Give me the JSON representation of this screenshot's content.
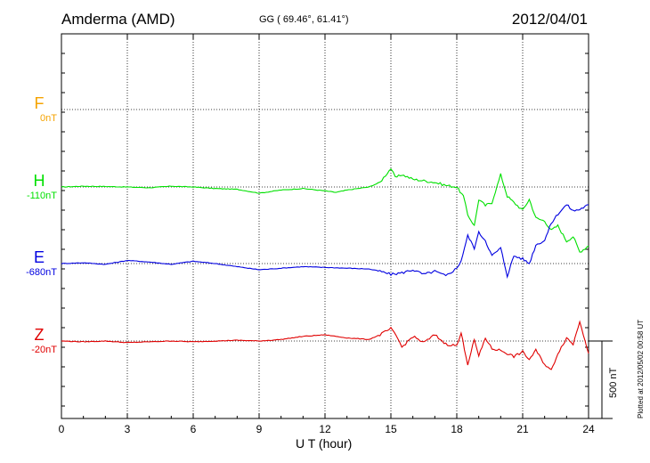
{
  "header": {
    "station": "Amderma (AMD)",
    "coords": "GG ( 69.46°,  61.41°)",
    "date": "2012/04/01",
    "plotted": "Plotted at 2012/05/02 00:58 UT"
  },
  "chart_data": {
    "type": "line",
    "xlabel": "U T (hour)",
    "xlim": [
      0,
      24
    ],
    "xticks": [
      0,
      3,
      6,
      9,
      12,
      15,
      18,
      21,
      24
    ],
    "grid": true,
    "channels": [
      {
        "name": "F",
        "offset": "0nT",
        "color": "#f5a300"
      },
      {
        "name": "H",
        "offset": "-110nT",
        "color": "#00e000"
      },
      {
        "name": "E",
        "offset": "-680nT",
        "color": "#0000e0"
      },
      {
        "name": "Z",
        "offset": "-20nT",
        "color": "#e00000"
      }
    ],
    "scale_bar": {
      "label": "500 nT",
      "value": 500
    },
    "series": [
      {
        "name": "H",
        "color": "#00e000",
        "x": [
          0,
          1,
          2,
          3,
          4,
          5,
          6,
          7,
          8,
          9,
          10,
          11,
          12,
          12.5,
          13,
          14,
          14.5,
          15,
          15.2,
          15.5,
          16,
          16.5,
          17,
          17.5,
          18,
          18.3,
          18.5,
          18.8,
          19,
          19.3,
          19.6,
          20,
          20.3,
          20.6,
          21,
          21.3,
          21.6,
          22,
          22.3,
          22.6,
          23,
          23.3,
          23.6,
          24
        ],
        "y": [
          0,
          5,
          3,
          0,
          -5,
          5,
          0,
          -10,
          -15,
          -40,
          -20,
          -10,
          -25,
          -35,
          -20,
          0,
          30,
          120,
          60,
          80,
          50,
          40,
          30,
          10,
          0,
          -60,
          -180,
          -250,
          -80,
          -120,
          -100,
          80,
          -60,
          -100,
          -150,
          -80,
          -200,
          -220,
          -280,
          -250,
          -350,
          -320,
          -420,
          -380
        ]
      },
      {
        "name": "E",
        "color": "#0000e0",
        "x": [
          0,
          1,
          2,
          3,
          4,
          5,
          6,
          7,
          8,
          9,
          10,
          11,
          12,
          13,
          14,
          14.5,
          15,
          15.5,
          16,
          16.5,
          17,
          17.5,
          18,
          18.2,
          18.5,
          18.8,
          19,
          19.3,
          19.6,
          20,
          20.3,
          20.6,
          21,
          21.3,
          21.6,
          22,
          22.3,
          22.6,
          23,
          23.3,
          23.6,
          24
        ],
        "y": [
          0,
          5,
          -5,
          20,
          10,
          -5,
          15,
          0,
          -20,
          -40,
          -30,
          -20,
          -25,
          -30,
          -35,
          -50,
          -70,
          -60,
          -40,
          -70,
          -50,
          -80,
          -30,
          20,
          180,
          100,
          200,
          150,
          50,
          100,
          -80,
          50,
          30,
          0,
          120,
          150,
          260,
          320,
          380,
          340,
          350,
          380
        ]
      },
      {
        "name": "Z",
        "color": "#e00000",
        "x": [
          0,
          1,
          2,
          3,
          4,
          5,
          6,
          7,
          8,
          9,
          10,
          11,
          12,
          13,
          14,
          14.5,
          15,
          15.3,
          15.5,
          16,
          16.5,
          17,
          17.5,
          18,
          18.2,
          18.5,
          18.8,
          19,
          19.3,
          19.6,
          20,
          20.3,
          20.6,
          21,
          21.3,
          21.6,
          22,
          22.3,
          22.6,
          23,
          23.3,
          23.6,
          24
        ],
        "y": [
          0,
          -5,
          0,
          -10,
          -5,
          0,
          -5,
          0,
          5,
          0,
          10,
          30,
          40,
          20,
          10,
          40,
          80,
          20,
          -40,
          30,
          -10,
          40,
          -20,
          -30,
          50,
          -150,
          10,
          -100,
          20,
          -50,
          -60,
          -80,
          -100,
          -70,
          -120,
          -60,
          -150,
          -190,
          -80,
          20,
          -20,
          130,
          -80
        ]
      }
    ]
  }
}
